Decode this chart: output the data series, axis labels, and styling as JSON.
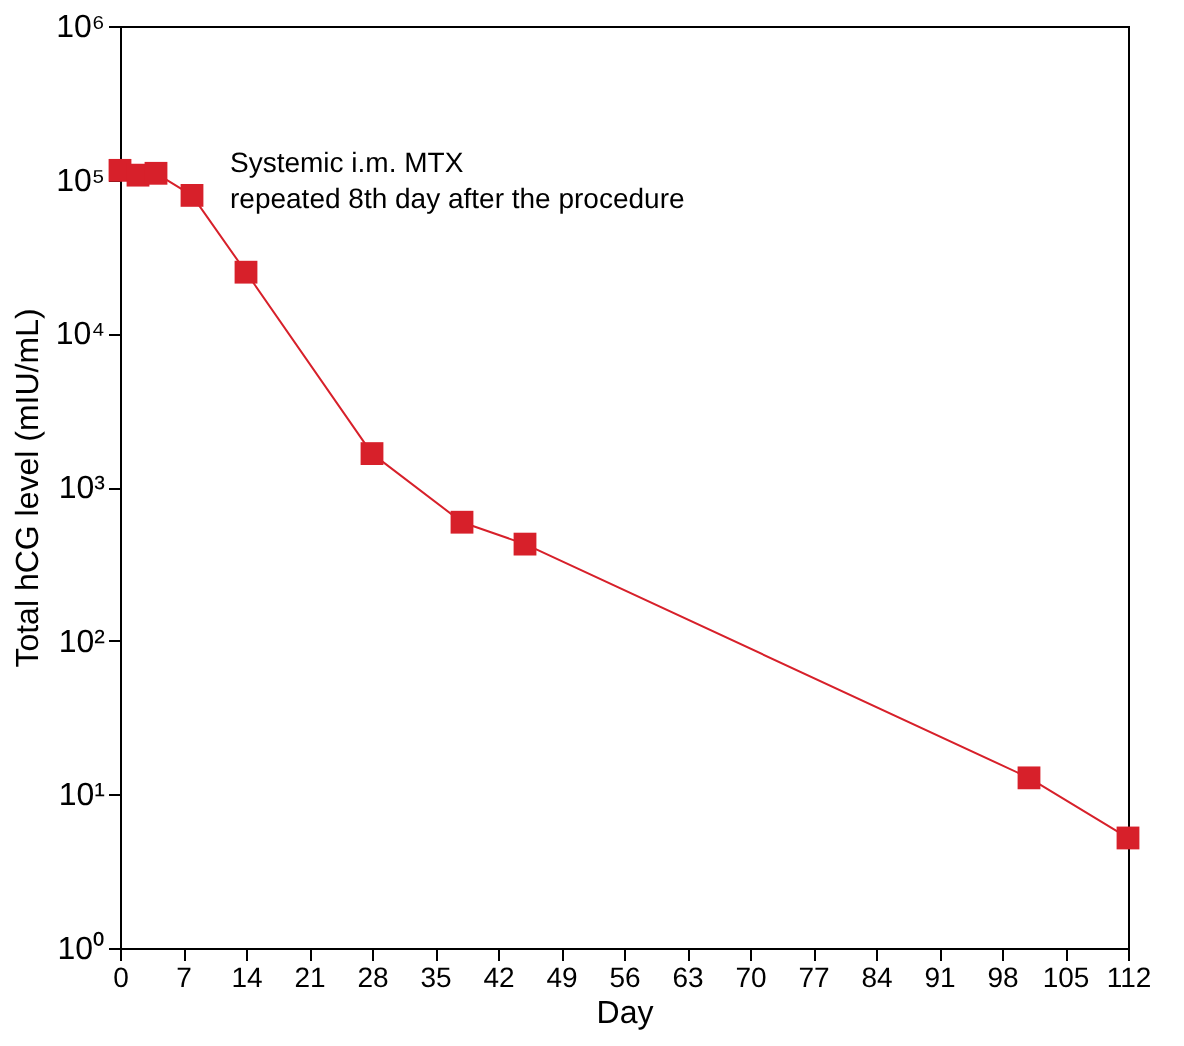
{
  "chart_data": {
    "type": "line",
    "xlabel": "Day",
    "ylabel": "Total hCG level (mIU/mL)",
    "log": "y",
    "x": [
      0,
      2,
      4,
      8,
      14,
      28,
      38,
      45,
      101,
      112
    ],
    "series": [
      {
        "color": "#d7202a",
        "values": [
          115000,
          107000,
          110000,
          79000,
          25000,
          1650,
          590,
          425,
          12.8,
          5.2
        ]
      }
    ],
    "xlim": [
      0,
      112
    ],
    "xticks": [
      0,
      7,
      14,
      21,
      28,
      35,
      42,
      49,
      56,
      63,
      70,
      77,
      84,
      91,
      98,
      105,
      112
    ],
    "ylim": [
      1,
      1000000
    ],
    "yticks": [
      {
        "value": 1,
        "label": "10⁰"
      },
      {
        "value": 10,
        "label": "10¹"
      },
      {
        "value": 100,
        "label": "10²"
      },
      {
        "value": 1000,
        "label": "10³"
      },
      {
        "value": 10000,
        "label": "10⁴"
      },
      {
        "value": 100000,
        "label": "10⁵"
      },
      {
        "value": 1000000,
        "label": "10⁶"
      }
    ],
    "annotations": [
      "Systemic i.m. MTX\nrepeated 8th day after the procedure"
    ],
    "marker": "square",
    "line_style": "solid",
    "grid": false
  }
}
